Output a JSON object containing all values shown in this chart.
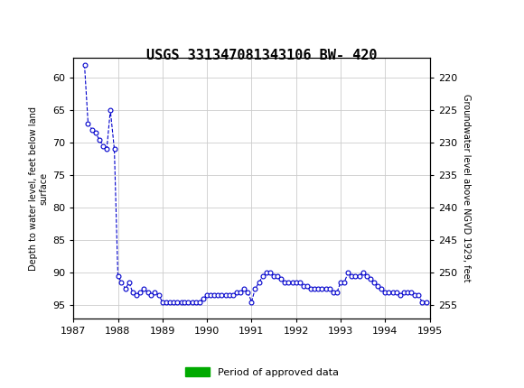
{
  "title": "USGS 331347081343106 BW- 420",
  "ylabel_left": "Depth to water level, feet below land\nsurface",
  "ylabel_right": "Groundwater level above NGVD 1929, feet",
  "xlim": [
    1987.0,
    1995.0
  ],
  "ylim_left": [
    57,
    97
  ],
  "ylim_right": [
    217,
    257
  ],
  "yticks_left": [
    60,
    65,
    70,
    75,
    80,
    85,
    90,
    95
  ],
  "yticks_right": [
    255,
    250,
    245,
    240,
    235,
    230,
    225,
    220
  ],
  "xticks": [
    1987,
    1988,
    1989,
    1990,
    1991,
    1992,
    1993,
    1994,
    1995
  ],
  "header_color": "#1a6b3c",
  "line_color": "#0000cc",
  "grid_color": "#cccccc",
  "legend_label": "Period of approved data",
  "legend_color": "#00aa00",
  "data_x": [
    1987.25,
    1987.33,
    1987.42,
    1987.5,
    1987.58,
    1987.67,
    1987.75,
    1987.83,
    1987.92,
    1988.0,
    1988.08,
    1988.17,
    1988.25,
    1988.33,
    1988.42,
    1988.5,
    1988.58,
    1988.67,
    1988.75,
    1988.83,
    1988.92,
    1989.0,
    1989.08,
    1989.17,
    1989.25,
    1989.33,
    1989.42,
    1989.5,
    1989.58,
    1989.67,
    1989.75,
    1989.83,
    1989.92,
    1990.0,
    1990.08,
    1990.17,
    1990.25,
    1990.33,
    1990.42,
    1990.5,
    1990.58,
    1990.67,
    1990.75,
    1990.83,
    1990.92,
    1991.0,
    1991.08,
    1991.17,
    1991.25,
    1991.33,
    1991.42,
    1991.5,
    1991.58,
    1991.67,
    1991.75,
    1991.83,
    1991.92,
    1992.0,
    1992.08,
    1992.17,
    1992.25,
    1992.33,
    1992.42,
    1992.5,
    1992.58,
    1992.67,
    1992.75,
    1992.83,
    1992.92,
    1993.0,
    1993.08,
    1993.17,
    1993.25,
    1993.33,
    1993.42,
    1993.5,
    1993.58,
    1993.67,
    1993.75,
    1993.83,
    1993.92,
    1994.0,
    1994.08,
    1994.17,
    1994.25,
    1994.33,
    1994.42,
    1994.5,
    1994.58,
    1994.67,
    1994.75,
    1994.83,
    1994.92
  ],
  "data_y": [
    58.0,
    67.0,
    68.0,
    68.5,
    69.5,
    70.5,
    71.0,
    65.0,
    71.0,
    90.5,
    91.5,
    92.5,
    91.5,
    93.0,
    93.5,
    93.0,
    92.5,
    93.0,
    93.5,
    93.0,
    93.5,
    94.5,
    94.5,
    94.5,
    94.5,
    94.5,
    94.5,
    94.5,
    94.5,
    94.5,
    94.5,
    94.5,
    94.0,
    93.5,
    93.5,
    93.5,
    93.5,
    93.5,
    93.5,
    93.5,
    93.5,
    93.0,
    93.0,
    92.5,
    93.0,
    94.5,
    92.5,
    91.5,
    90.5,
    90.0,
    90.0,
    90.5,
    90.5,
    91.0,
    91.5,
    91.5,
    91.5,
    91.5,
    91.5,
    92.0,
    92.0,
    92.5,
    92.5,
    92.5,
    92.5,
    92.5,
    92.5,
    93.0,
    93.0,
    91.5,
    91.5,
    90.0,
    90.5,
    90.5,
    90.5,
    90.0,
    90.5,
    91.0,
    91.5,
    92.0,
    92.5,
    93.0,
    93.0,
    93.0,
    93.0,
    93.5,
    93.0,
    93.0,
    93.0,
    93.5,
    93.5,
    94.5,
    94.5
  ],
  "background_color": "#ffffff",
  "title_fontsize": 11,
  "tick_fontsize": 8,
  "ylabel_fontsize": 7
}
